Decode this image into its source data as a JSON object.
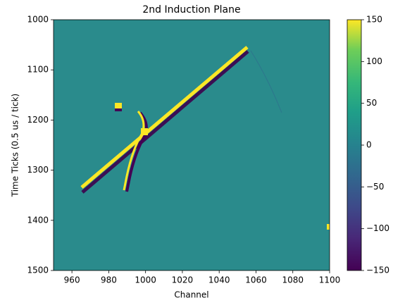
{
  "chart_data": {
    "type": "heatmap",
    "title": "2nd Induction Plane",
    "x_label": "Channel",
    "y_label": "Time Ticks (0.5 us / tick)",
    "xlim": [
      950,
      1100
    ],
    "xticks": [
      960,
      980,
      1000,
      1020,
      1040,
      1060,
      1080,
      1100
    ],
    "ylim": [
      1500,
      1000
    ],
    "yticks": [
      1000,
      1100,
      1200,
      1300,
      1400,
      1500
    ],
    "colorbar": {
      "clim": [
        -150,
        150
      ],
      "colormap": "viridis",
      "ticks": [
        {
          "value": -150,
          "label": "−150"
        },
        {
          "value": -100,
          "label": "−100"
        },
        {
          "value": -50,
          "label": "−50"
        },
        0,
        50,
        100,
        150
      ]
    }
  }
}
